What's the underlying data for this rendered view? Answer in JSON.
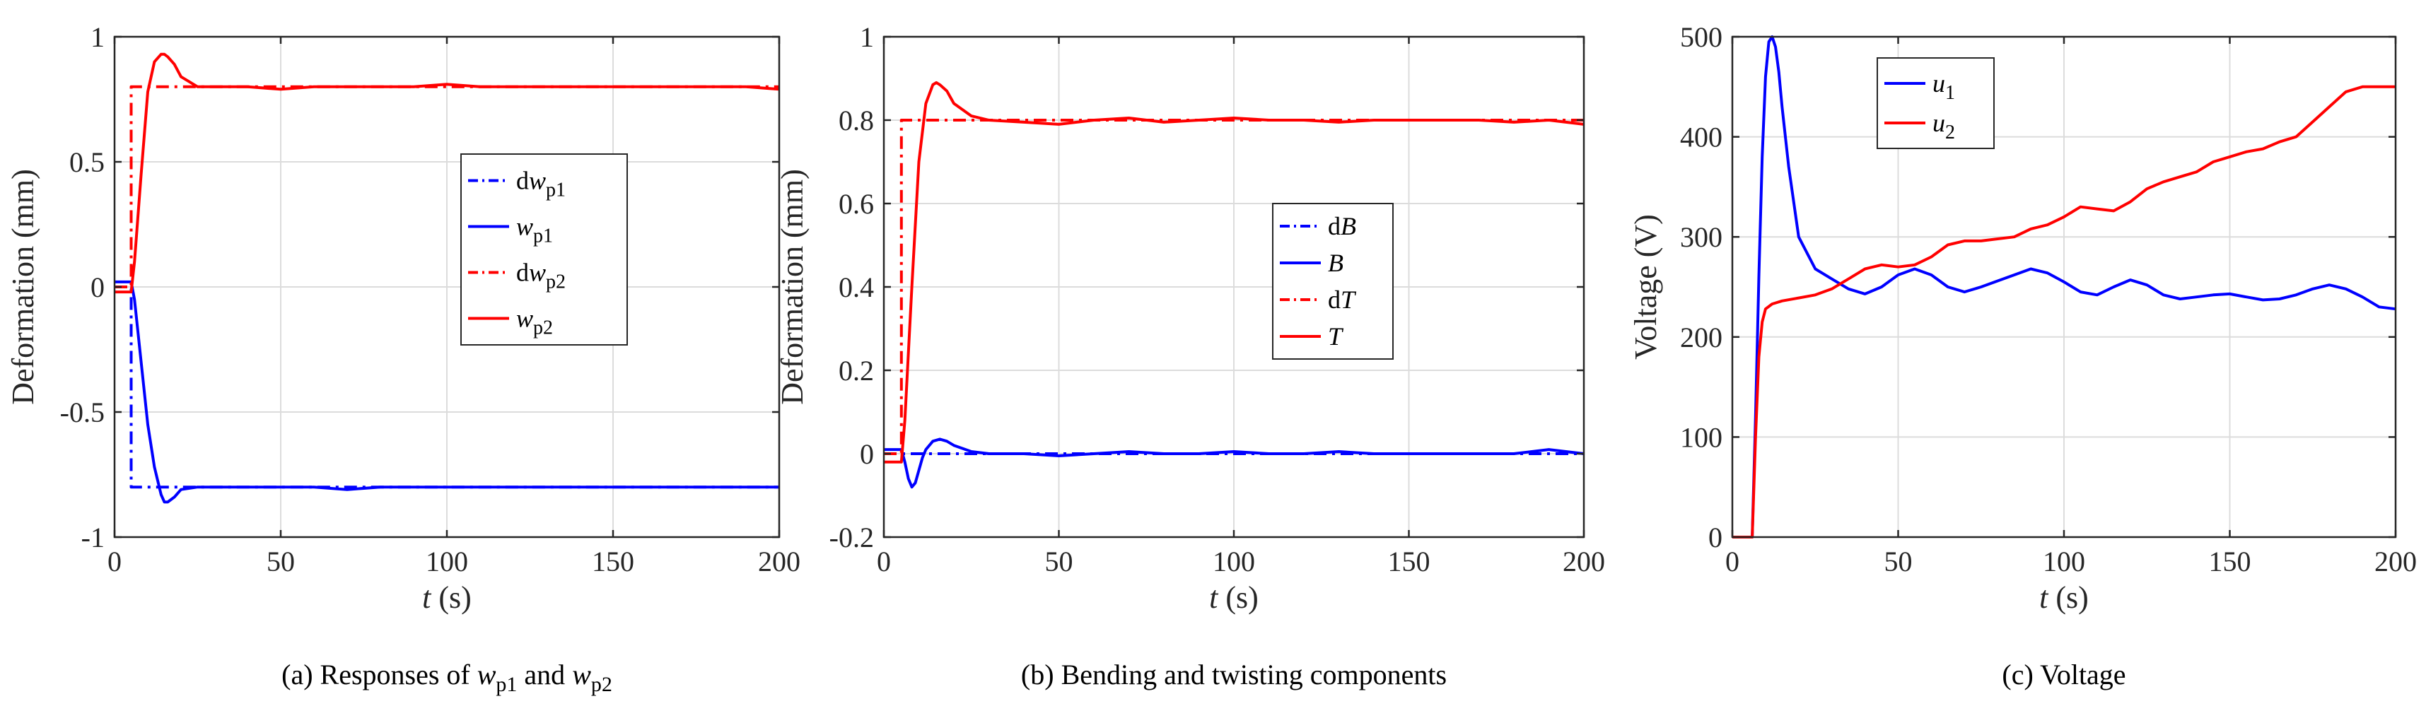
{
  "chart_data": [
    {
      "type": "line",
      "caption": {
        "prefix": "(a) Responses of ",
        "v1": "w",
        "s1": "p1",
        "mid": " and ",
        "v2": "w",
        "s2": "p2"
      },
      "xlabel": {
        "var": "t",
        "unit": " (s)"
      },
      "ylabel": "Deformation (mm)",
      "xlim": [
        0,
        200
      ],
      "ylim": [
        -1,
        1
      ],
      "xticks": [
        "0",
        "50",
        "100",
        "150",
        "200"
      ],
      "yticks": [
        "-1",
        "-0.5",
        "0",
        "0.5",
        "1"
      ],
      "grid": true,
      "legend_position": "center-right",
      "series": [
        {
          "legend": {
            "pre": "d",
            "var": "w",
            "sub": "p1"
          },
          "color": "#0000ff",
          "style": "dashdot",
          "x": [
            0,
            5,
            5,
            200
          ],
          "y": [
            0,
            0,
            -0.8,
            -0.8
          ]
        },
        {
          "legend": {
            "pre": "",
            "var": "w",
            "sub": "p1"
          },
          "color": "#0000ff",
          "style": "solid",
          "x": [
            0,
            2,
            5,
            6,
            8,
            10,
            12,
            14,
            15,
            16,
            18,
            20,
            25,
            30,
            40,
            50,
            60,
            70,
            80,
            90,
            100,
            110,
            120,
            130,
            140,
            150,
            160,
            170,
            180,
            190,
            200
          ],
          "y": [
            0.02,
            0.02,
            0.02,
            -0.05,
            -0.3,
            -0.55,
            -0.72,
            -0.83,
            -0.86,
            -0.86,
            -0.84,
            -0.81,
            -0.8,
            -0.8,
            -0.8,
            -0.8,
            -0.8,
            -0.81,
            -0.8,
            -0.8,
            -0.8,
            -0.8,
            -0.8,
            -0.8,
            -0.8,
            -0.8,
            -0.8,
            -0.8,
            -0.8,
            -0.8,
            -0.8
          ]
        },
        {
          "legend": {
            "pre": "d",
            "var": "w",
            "sub": "p2"
          },
          "color": "#ff0000",
          "style": "dashdot",
          "x": [
            0,
            5,
            5,
            200
          ],
          "y": [
            0,
            0,
            0.8,
            0.8
          ]
        },
        {
          "legend": {
            "pre": "",
            "var": "w",
            "sub": "p2"
          },
          "color": "#ff0000",
          "style": "solid",
          "x": [
            0,
            2,
            5,
            6,
            8,
            10,
            12,
            14,
            15,
            16,
            18,
            20,
            25,
            30,
            40,
            50,
            60,
            70,
            80,
            90,
            100,
            110,
            120,
            130,
            140,
            150,
            160,
            170,
            180,
            190,
            200
          ],
          "y": [
            -0.02,
            -0.02,
            -0.02,
            0.1,
            0.45,
            0.78,
            0.9,
            0.93,
            0.93,
            0.92,
            0.89,
            0.84,
            0.8,
            0.8,
            0.8,
            0.79,
            0.8,
            0.8,
            0.8,
            0.8,
            0.81,
            0.8,
            0.8,
            0.8,
            0.8,
            0.8,
            0.8,
            0.8,
            0.8,
            0.8,
            0.79
          ]
        }
      ]
    },
    {
      "type": "line",
      "caption": {
        "text": "(b) Bending and twisting components"
      },
      "xlabel": {
        "var": "t",
        "unit": " (s)"
      },
      "ylabel": "Deformation (mm)",
      "xlim": [
        0,
        200
      ],
      "ylim": [
        -0.2,
        1
      ],
      "xticks": [
        "0",
        "50",
        "100",
        "150",
        "200"
      ],
      "yticks": [
        "-0.2",
        "0",
        "0.2",
        "0.4",
        "0.6",
        "0.8",
        "1"
      ],
      "grid": true,
      "legend_position": "center-right",
      "series": [
        {
          "legend": {
            "pre": "d",
            "var": "B",
            "sub": ""
          },
          "color": "#0000ff",
          "style": "dashdot",
          "x": [
            0,
            200
          ],
          "y": [
            0,
            0
          ]
        },
        {
          "legend": {
            "pre": "",
            "var": "B",
            "sub": ""
          },
          "color": "#0000ff",
          "style": "solid",
          "x": [
            0,
            2,
            5,
            6,
            7,
            8,
            9,
            10,
            11,
            12,
            14,
            16,
            18,
            20,
            25,
            30,
            40,
            50,
            60,
            70,
            80,
            90,
            100,
            110,
            120,
            130,
            140,
            150,
            160,
            170,
            180,
            190,
            200
          ],
          "y": [
            0.01,
            0.01,
            0.01,
            -0.02,
            -0.06,
            -0.08,
            -0.07,
            -0.04,
            -0.01,
            0.01,
            0.03,
            0.035,
            0.03,
            0.02,
            0.005,
            0,
            0,
            -0.005,
            0,
            0.005,
            0,
            0,
            0.005,
            0,
            0,
            0.005,
            0,
            0,
            0,
            0,
            0,
            0.01,
            0
          ]
        },
        {
          "legend": {
            "pre": "d",
            "var": "T",
            "sub": ""
          },
          "color": "#ff0000",
          "style": "dashdot",
          "x": [
            0,
            5,
            5,
            200
          ],
          "y": [
            0,
            0,
            0.8,
            0.8
          ]
        },
        {
          "legend": {
            "pre": "",
            "var": "T",
            "sub": ""
          },
          "color": "#ff0000",
          "style": "solid",
          "x": [
            0,
            2,
            5,
            6,
            8,
            10,
            12,
            14,
            15,
            16,
            18,
            20,
            25,
            30,
            40,
            50,
            60,
            70,
            80,
            90,
            100,
            110,
            120,
            130,
            140,
            150,
            160,
            170,
            180,
            190,
            200
          ],
          "y": [
            -0.02,
            -0.02,
            -0.02,
            0.08,
            0.4,
            0.7,
            0.84,
            0.885,
            0.89,
            0.885,
            0.87,
            0.84,
            0.81,
            0.8,
            0.795,
            0.79,
            0.8,
            0.805,
            0.795,
            0.8,
            0.805,
            0.8,
            0.8,
            0.795,
            0.8,
            0.8,
            0.8,
            0.8,
            0.795,
            0.8,
            0.79
          ]
        }
      ]
    },
    {
      "type": "line",
      "caption": {
        "text": "(c) Voltage"
      },
      "xlabel": {
        "var": "t",
        "unit": " (s)"
      },
      "ylabel": "Voltage (V)",
      "xlim": [
        0,
        200
      ],
      "ylim": [
        0,
        500
      ],
      "xticks": [
        "0",
        "50",
        "100",
        "150",
        "200"
      ],
      "yticks": [
        "0",
        "100",
        "200",
        "300",
        "400",
        "500"
      ],
      "grid": true,
      "legend_position": "top-left",
      "series": [
        {
          "legend": {
            "pre": "",
            "var": "u",
            "sub": "1"
          },
          "color": "#0000ff",
          "style": "solid",
          "x": [
            0,
            4,
            6,
            7,
            8,
            9,
            10,
            11,
            12,
            13,
            14,
            15,
            17,
            20,
            25,
            30,
            35,
            40,
            45,
            50,
            55,
            60,
            65,
            70,
            75,
            80,
            85,
            90,
            95,
            100,
            105,
            110,
            115,
            120,
            125,
            130,
            135,
            140,
            145,
            150,
            155,
            160,
            165,
            170,
            175,
            180,
            185,
            190,
            195,
            200
          ],
          "y": [
            0,
            0,
            0,
            120,
            260,
            380,
            460,
            495,
            500,
            490,
            465,
            430,
            370,
            300,
            268,
            258,
            248,
            243,
            250,
            262,
            268,
            262,
            250,
            245,
            250,
            256,
            262,
            268,
            264,
            255,
            245,
            242,
            250,
            257,
            252,
            242,
            238,
            240,
            242,
            243,
            240,
            237,
            238,
            242,
            248,
            252,
            248,
            240,
            230,
            228
          ]
        },
        {
          "legend": {
            "pre": "",
            "var": "u",
            "sub": "2"
          },
          "color": "#ff0000",
          "style": "solid",
          "x": [
            0,
            4,
            6,
            7,
            8,
            9,
            10,
            12,
            15,
            20,
            25,
            30,
            35,
            40,
            45,
            50,
            55,
            60,
            65,
            70,
            75,
            80,
            85,
            90,
            95,
            100,
            105,
            110,
            115,
            120,
            125,
            130,
            135,
            140,
            145,
            150,
            155,
            160,
            165,
            170,
            175,
            180,
            185,
            190,
            195,
            200
          ],
          "y": [
            0,
            0,
            0,
            100,
            180,
            215,
            228,
            233,
            236,
            239,
            242,
            248,
            258,
            268,
            272,
            270,
            272,
            280,
            292,
            296,
            296,
            298,
            300,
            308,
            312,
            320,
            330,
            328,
            326,
            335,
            348,
            355,
            360,
            365,
            375,
            380,
            385,
            388,
            395,
            400,
            415,
            430,
            445,
            450,
            450,
            450
          ]
        }
      ]
    }
  ]
}
